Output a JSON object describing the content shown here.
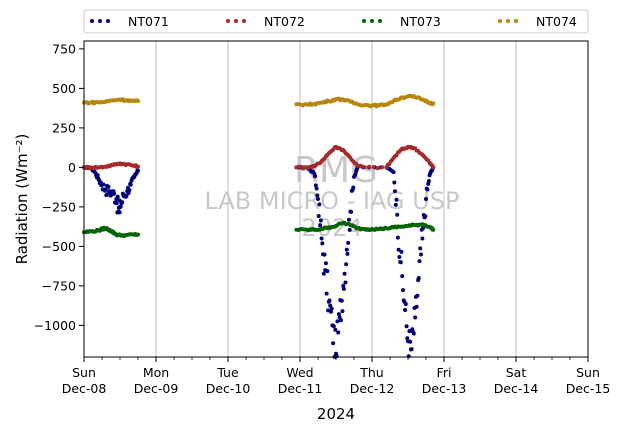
{
  "chart_data": {
    "type": "scatter",
    "title": "",
    "xlabel": "2024",
    "ylabel": "Radiation (Wm⁻²)",
    "ylim": [
      -1200,
      800
    ],
    "yticks": [
      "−1000",
      "−750",
      "−500",
      "−250",
      "0",
      "250",
      "500",
      "750"
    ],
    "ytick_values": [
      -1000,
      -750,
      -500,
      -250,
      0,
      250,
      500,
      750
    ],
    "xlim": [
      0,
      7
    ],
    "x_unit": "days since Sun Dec-08 00:00",
    "xticks": [
      {
        "day": "Sun",
        "date": "Dec-08",
        "x": 0
      },
      {
        "day": "Mon",
        "date": "Dec-09",
        "x": 1
      },
      {
        "day": "Tue",
        "date": "Dec-10",
        "x": 2
      },
      {
        "day": "Wed",
        "date": "Dec-11",
        "x": 3
      },
      {
        "day": "Thu",
        "date": "Dec-12",
        "x": 4
      },
      {
        "day": "Fri",
        "date": "Dec-13",
        "x": 5
      },
      {
        "day": "Sat",
        "date": "Dec-14",
        "x": 6
      },
      {
        "day": "Sun",
        "date": "Dec-15",
        "x": 7
      }
    ],
    "grid": "vertical",
    "legend_position": "top",
    "watermark": {
      "line1": "RMG",
      "line2": "LAB MICRO - IAG USP",
      "line3": "2024"
    },
    "series": [
      {
        "name": "NT071",
        "color": "#00007f",
        "points": [
          [
            0.0,
            0
          ],
          [
            0.1,
            -5
          ],
          [
            0.15,
            -30
          ],
          [
            0.2,
            -70
          ],
          [
            0.25,
            -110
          ],
          [
            0.3,
            -140
          ],
          [
            0.35,
            -150
          ],
          [
            0.4,
            -160
          ],
          [
            0.45,
            -200
          ],
          [
            0.48,
            -280
          ],
          [
            0.5,
            -250
          ],
          [
            0.55,
            -180
          ],
          [
            0.6,
            -150
          ],
          [
            0.65,
            -110
          ],
          [
            0.7,
            -60
          ],
          [
            0.75,
            -20
          ],
          [
            2.95,
            0
          ],
          [
            3.1,
            0
          ],
          [
            3.2,
            -40
          ],
          [
            3.25,
            -200
          ],
          [
            3.3,
            -450
          ],
          [
            3.35,
            -650
          ],
          [
            3.4,
            -850
          ],
          [
            3.45,
            -1000
          ],
          [
            3.5,
            -1180
          ],
          [
            3.55,
            -950
          ],
          [
            3.6,
            -750
          ],
          [
            3.65,
            -520
          ],
          [
            3.7,
            -280
          ],
          [
            3.75,
            -60
          ],
          [
            3.8,
            0
          ],
          [
            4.2,
            0
          ],
          [
            4.3,
            -30
          ],
          [
            4.35,
            -300
          ],
          [
            4.4,
            -600
          ],
          [
            4.45,
            -850
          ],
          [
            4.5,
            -1100
          ],
          [
            4.55,
            -1150
          ],
          [
            4.6,
            -950
          ],
          [
            4.65,
            -700
          ],
          [
            4.7,
            -450
          ],
          [
            4.75,
            -200
          ],
          [
            4.8,
            -50
          ],
          [
            4.85,
            0
          ]
        ]
      },
      {
        "name": "NT072",
        "color": "#a52a2a",
        "points": [
          [
            0.0,
            0
          ],
          [
            0.1,
            0
          ],
          [
            0.2,
            0
          ],
          [
            0.3,
            5
          ],
          [
            0.4,
            15
          ],
          [
            0.5,
            25
          ],
          [
            0.6,
            20
          ],
          [
            0.7,
            10
          ],
          [
            0.75,
            5
          ],
          [
            2.95,
            0
          ],
          [
            3.1,
            0
          ],
          [
            3.2,
            5
          ],
          [
            3.3,
            40
          ],
          [
            3.4,
            90
          ],
          [
            3.5,
            130
          ],
          [
            3.6,
            110
          ],
          [
            3.7,
            60
          ],
          [
            3.8,
            10
          ],
          [
            3.9,
            0
          ],
          [
            4.2,
            0
          ],
          [
            4.3,
            60
          ],
          [
            4.4,
            110
          ],
          [
            4.5,
            130
          ],
          [
            4.6,
            120
          ],
          [
            4.7,
            80
          ],
          [
            4.8,
            30
          ],
          [
            4.85,
            0
          ]
        ]
      },
      {
        "name": "NT073",
        "color": "#006400",
        "points": [
          [
            0.0,
            -410
          ],
          [
            0.1,
            -405
          ],
          [
            0.2,
            -400
          ],
          [
            0.25,
            -390
          ],
          [
            0.3,
            -385
          ],
          [
            0.35,
            -395
          ],
          [
            0.4,
            -410
          ],
          [
            0.45,
            -425
          ],
          [
            0.5,
            -430
          ],
          [
            0.6,
            -428
          ],
          [
            0.7,
            -425
          ],
          [
            0.75,
            -425
          ],
          [
            2.95,
            -395
          ],
          [
            3.1,
            -395
          ],
          [
            3.2,
            -395
          ],
          [
            3.3,
            -390
          ],
          [
            3.4,
            -380
          ],
          [
            3.5,
            -370
          ],
          [
            3.6,
            -350
          ],
          [
            3.7,
            -365
          ],
          [
            3.8,
            -385
          ],
          [
            3.9,
            -390
          ],
          [
            4.0,
            -390
          ],
          [
            4.1,
            -390
          ],
          [
            4.2,
            -385
          ],
          [
            4.3,
            -380
          ],
          [
            4.4,
            -375
          ],
          [
            4.5,
            -370
          ],
          [
            4.6,
            -365
          ],
          [
            4.7,
            -360
          ],
          [
            4.8,
            -375
          ],
          [
            4.85,
            -395
          ]
        ]
      },
      {
        "name": "NT074",
        "color": "#b8860b",
        "points": [
          [
            0.0,
            410
          ],
          [
            0.1,
            410
          ],
          [
            0.2,
            412
          ],
          [
            0.3,
            415
          ],
          [
            0.4,
            425
          ],
          [
            0.5,
            430
          ],
          [
            0.6,
            425
          ],
          [
            0.7,
            420
          ],
          [
            0.75,
            420
          ],
          [
            2.95,
            400
          ],
          [
            3.1,
            398
          ],
          [
            3.2,
            402
          ],
          [
            3.3,
            410
          ],
          [
            3.4,
            420
          ],
          [
            3.5,
            432
          ],
          [
            3.6,
            430
          ],
          [
            3.7,
            415
          ],
          [
            3.8,
            400
          ],
          [
            3.9,
            395
          ],
          [
            4.0,
            392
          ],
          [
            4.1,
            392
          ],
          [
            4.2,
            400
          ],
          [
            4.3,
            420
          ],
          [
            4.4,
            440
          ],
          [
            4.5,
            450
          ],
          [
            4.6,
            445
          ],
          [
            4.7,
            430
          ],
          [
            4.8,
            410
          ],
          [
            4.85,
            405
          ]
        ]
      }
    ]
  }
}
